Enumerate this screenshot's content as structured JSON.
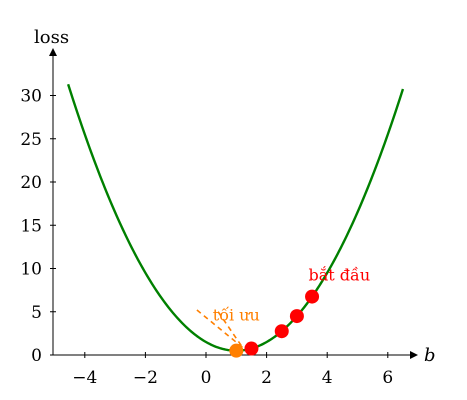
{
  "chart_data": {
    "type": "line",
    "title": "",
    "xlabel": "b",
    "ylabel": "loss",
    "xlim": [
      -5,
      7
    ],
    "ylim": [
      0,
      35
    ],
    "x_ticks": [
      -4,
      -2,
      0,
      2,
      4,
      6
    ],
    "y_ticks": [
      0,
      5,
      10,
      15,
      20,
      25,
      30
    ],
    "x_tick_labels": [
      "−4",
      "−2",
      "0",
      "2",
      "4",
      "6"
    ],
    "y_tick_labels": [
      "0",
      "5",
      "10",
      "15",
      "20",
      "25",
      "30"
    ],
    "curve": {
      "formula": "loss = (b - 1)^2 + 0.5",
      "x_range": [
        -4.55,
        6.5
      ],
      "color": "#008000"
    },
    "series": [
      {
        "kind": "points",
        "color": "#ff0000",
        "x": [
          3.5,
          3.0,
          2.5,
          1.5
        ],
        "y": [
          6.75,
          4.5,
          2.75,
          0.75
        ]
      },
      {
        "kind": "points",
        "color": "#ff7f00",
        "x": [
          1.0
        ],
        "y": [
          0.5
        ]
      }
    ],
    "annotations": [
      {
        "text": "bắt đầu",
        "x": 4.4,
        "y": 8.6,
        "color": "#ff0000"
      },
      {
        "text": "tối ưu",
        "x": 1.0,
        "y": 4.0,
        "color": "#ff7f00"
      }
    ],
    "tangent_line": {
      "color": "#ff7f00",
      "dashed": true,
      "x": [
        -0.3,
        1.2
      ],
      "y": [
        5.2,
        0.9
      ]
    },
    "tangent_line_2": {
      "color": "#ff7f00",
      "dashed": true,
      "x": [
        0.4,
        1.2
      ],
      "y": [
        5.0,
        0.9
      ]
    }
  }
}
